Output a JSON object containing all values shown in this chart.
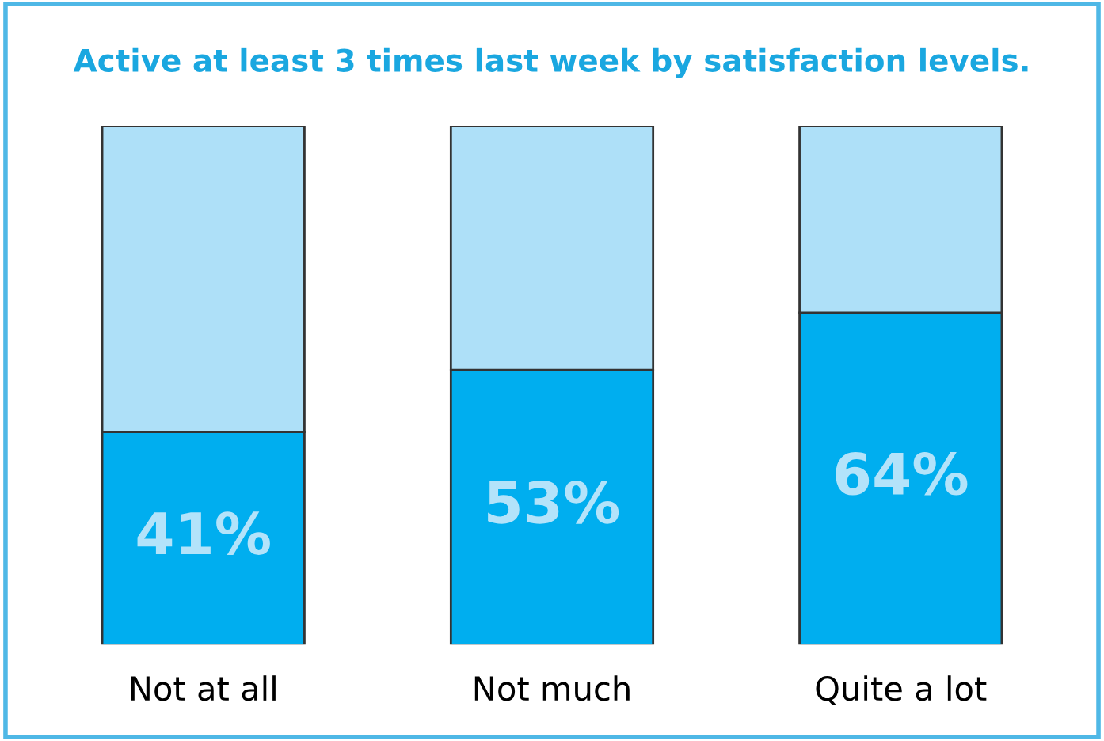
{
  "chart_data": {
    "type": "bar",
    "title": "Active at least 3 times last week by satisfaction levels.",
    "categories": [
      "Not at all",
      "Not much",
      "Quite a lot"
    ],
    "stacked": true,
    "tick_labels": "x",
    "grid": false,
    "legend": false,
    "series": [
      {
        "color": "#00aeef",
        "values": [
          41,
          53,
          64
        ],
        "value_labels": [
          "41%",
          "53%",
          "64%"
        ]
      },
      {
        "color": "#aee0f8",
        "values": [
          59,
          47,
          36
        ]
      }
    ]
  }
}
